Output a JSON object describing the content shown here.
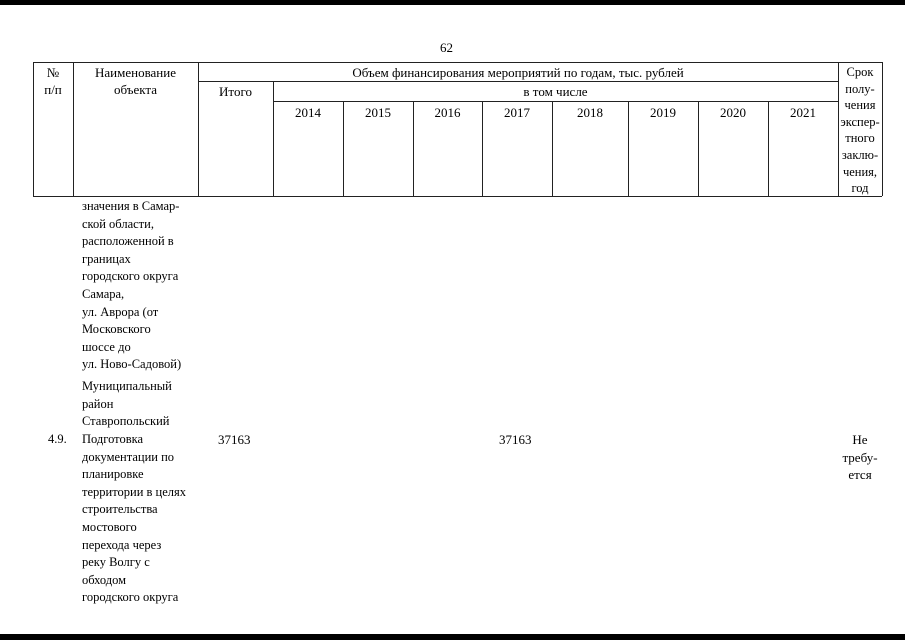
{
  "page_number": "62",
  "header": {
    "num": "№\nп/п",
    "name": "Наименование\nобъекта",
    "funding": "Объем финансирования мероприятий по годам, тыс. рублей",
    "total": "Итого",
    "including": "в том числе",
    "years": [
      "2014",
      "2015",
      "2016",
      "2017",
      "2018",
      "2019",
      "2020",
      "2021"
    ],
    "term": "Срок\nполу-\nчения\nэкспер-\nтного\nзаклю-\nчения,\nгод"
  },
  "continued_text": "значения в Самар-\nской области,\nрасположенной в\nграницах\nгородского округа\nСамара,\nул. Аврора (от\nМосковского\nшоссе до\nул. Ново-Садовой)",
  "section_text": "Муниципальный\nрайон\nСтавропольский",
  "row": {
    "num": "4.9.",
    "name": "Подготовка\nдокументации по\nпланировке\nтерритории в целях\nстроительства\nмостового\nперехода через\nреку Волгу с\nобходом\nгородского округа",
    "total": "37163",
    "y2017": "37163",
    "term": "Не\nтребу-\nется"
  }
}
